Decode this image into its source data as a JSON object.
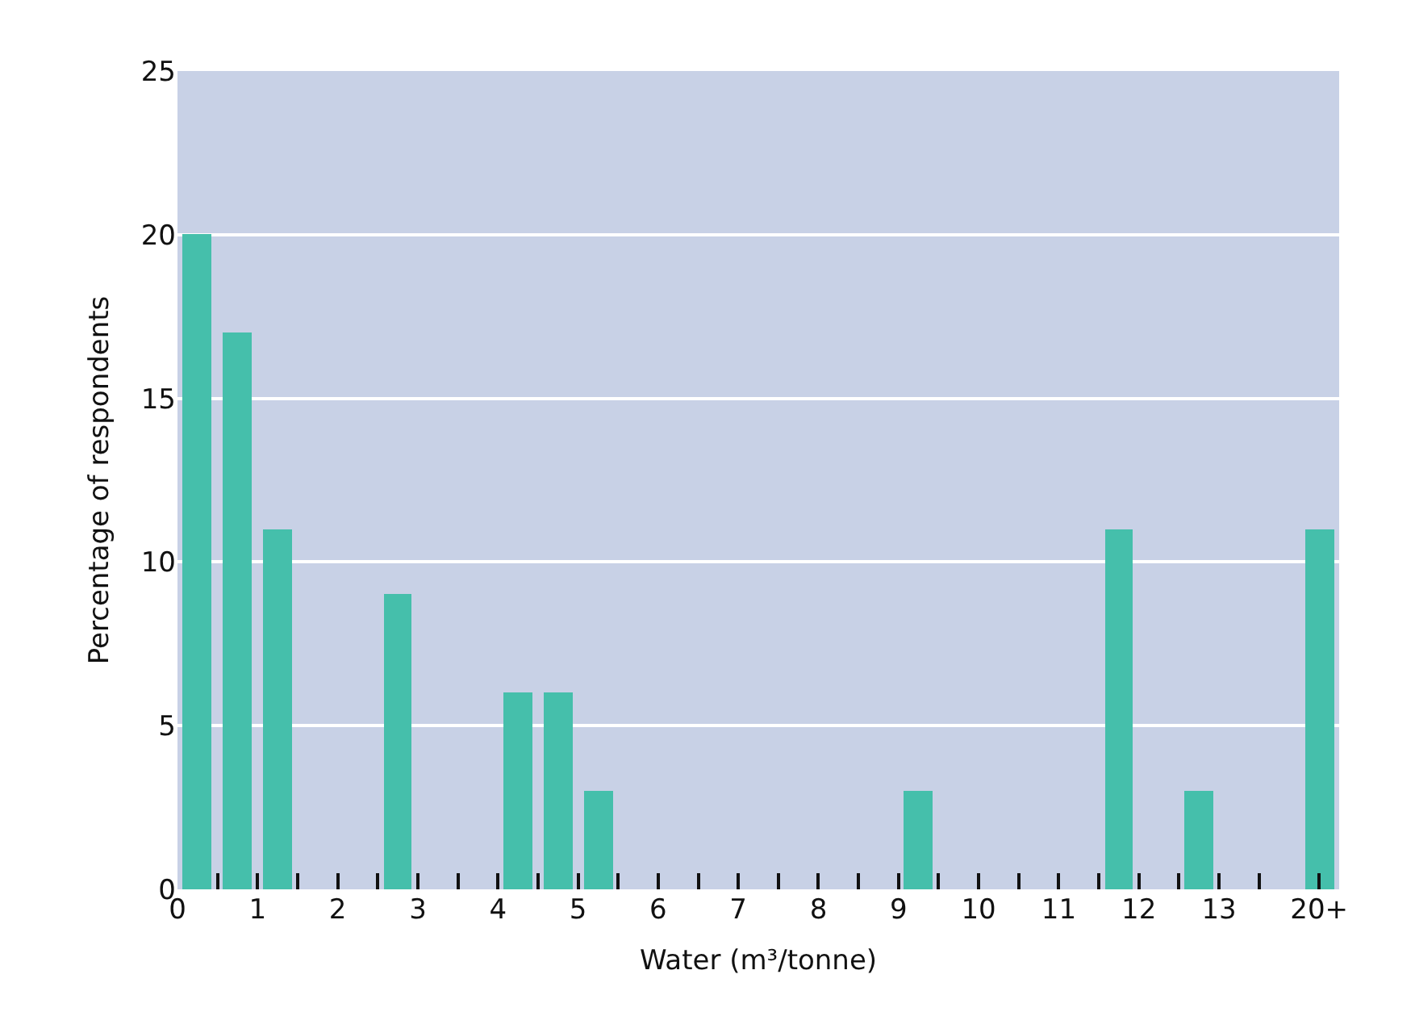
{
  "chart_data": {
    "type": "bar",
    "xlabel": "Water (m³/tonne)",
    "ylabel": "Percentage of respondents",
    "x": [
      0.25,
      0.75,
      1.25,
      2.75,
      4.25,
      4.75,
      5.25,
      9.25,
      11.75,
      12.75,
      14.25
    ],
    "values": [
      20,
      17,
      11,
      9,
      6,
      6,
      3,
      3,
      11,
      3,
      11
    ],
    "color": "#45bfab",
    "xlim": [
      0,
      14.5
    ],
    "xticks": [
      0,
      {
        "value": 0.5,
        "label": null
      },
      1,
      {
        "value": 1.5,
        "label": null
      },
      2,
      {
        "value": 2.5,
        "label": null
      },
      3,
      {
        "value": 3.5,
        "label": null
      },
      4,
      {
        "value": 4.5,
        "label": null
      },
      5,
      {
        "value": 5.5,
        "label": null
      },
      6,
      {
        "value": 6.5,
        "label": null
      },
      7,
      {
        "value": 7.5,
        "label": null
      },
      8,
      {
        "value": 8.5,
        "label": null
      },
      9,
      {
        "value": 9.5,
        "label": null
      },
      10,
      {
        "value": 10.5,
        "label": null
      },
      11,
      {
        "value": 11.5,
        "label": null
      },
      12,
      {
        "value": 12.5,
        "label": null
      },
      13,
      {
        "value": 13.5,
        "label": null
      },
      {
        "value": 14.25,
        "label": "20+"
      }
    ],
    "ylim": [
      0,
      25
    ],
    "yticks": [
      0,
      5,
      10,
      15,
      20,
      25
    ],
    "grid": "y"
  }
}
